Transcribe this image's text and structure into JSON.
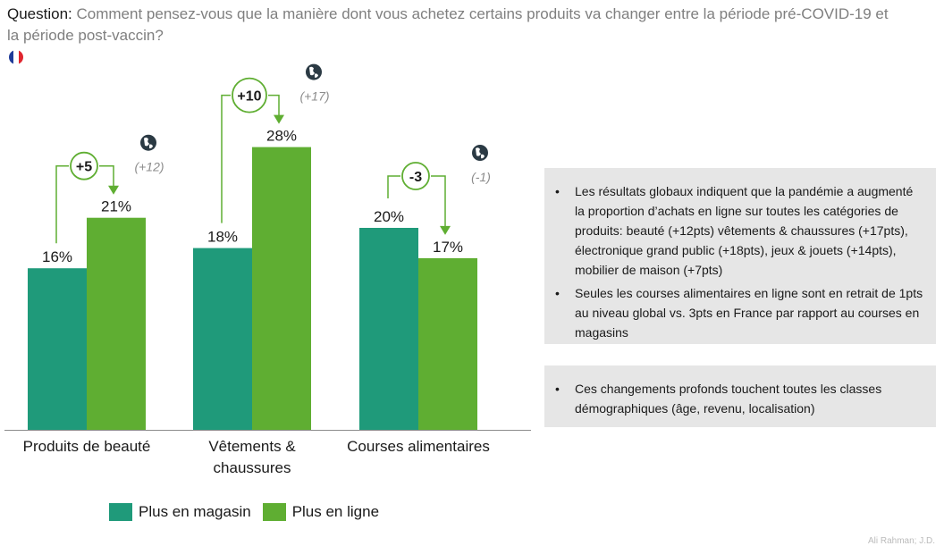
{
  "question": {
    "label": "Question:",
    "text": "Comment pensez-vous que la manière dont vous achetez certains produits va changer entre la période pré-COVID-19 et la période post-vaccin?"
  },
  "flag": {
    "name": "france-flag-icon",
    "colors": [
      "#1f3b99",
      "#ffffff",
      "#e0262f"
    ]
  },
  "colors": {
    "magasin": "#1f9a7a",
    "ligne": "#5fae32",
    "badge": "#5fae32",
    "delta_note": "#8c8c8c"
  },
  "chart_data": {
    "type": "bar",
    "categories": [
      "Produits de beauté",
      "Vêtements & chaussures",
      "Courses alimentaires"
    ],
    "series": [
      {
        "name": "Plus en magasin",
        "values": [
          16,
          18,
          20
        ],
        "labels": [
          "16%",
          "18%",
          "20%"
        ]
      },
      {
        "name": "Plus en ligne",
        "values": [
          21,
          28,
          17
        ],
        "labels": [
          "21%",
          "28%",
          "17%"
        ]
      }
    ],
    "ylim": [
      0,
      30
    ],
    "deltas": [
      "+5",
      "+10",
      "-3"
    ],
    "global_deltas": [
      "(+12)",
      "(+17)",
      "(-1)"
    ],
    "legend_position": "bottom"
  },
  "panel1": {
    "bullets": [
      "Les résultats globaux indiquent que la pandémie a augmenté la proportion d’achats en ligne sur toutes les catégories de produits: beauté (+12pts) vêtements & chaussures (+17pts), électronique grand public (+18pts), jeux & jouets (+14pts), mobilier de maison (+7pts)",
      "Seules les courses alimentaires en ligne sont en retrait de 1pts au niveau global vs. 3pts en France par rapport au courses en magasins"
    ]
  },
  "panel2": {
    "bullets": [
      "Ces changements profonds touchent toutes les classes démographiques (âge, revenu, localisation)"
    ]
  },
  "legend": {
    "magasin": "Plus en magasin",
    "ligne": "Plus en ligne"
  },
  "footer": "Ali Rahman; J.D."
}
